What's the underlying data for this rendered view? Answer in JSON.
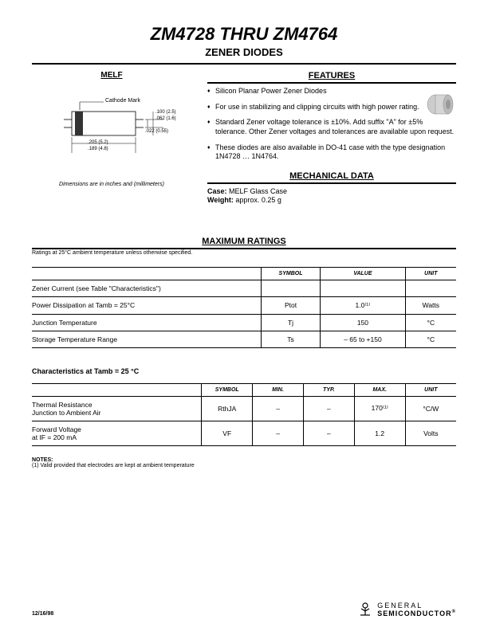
{
  "title_main": "ZM4728 THRU ZM4764",
  "title_sub": "ZENER DIODES",
  "melf_label": "MELF",
  "diagram": {
    "cathode_label": "Cathode Mark",
    "dim1": ".100 (2.5)",
    "dim2": ".062 (1.6)",
    "dim3": ".022 (0.55)",
    "dim4": ".205 (5.2)",
    "dim5": ".189 (4.8)"
  },
  "dim_note": "Dimensions are in inches and (millimeters)",
  "features_header": "FEATURES",
  "features": [
    "Silicon Planar Power Zener Diodes",
    "For use in stabilizing and clipping circuits with high power rating.",
    "Standard Zener voltage tolerance is ±10%. Add suffix \"A\" for ±5% tolerance. Other Zener voltages and tolerances are available upon request.",
    "These diodes are also available in DO-41 case with the type designation 1N4728 … 1N4764."
  ],
  "mech_header": "MECHANICAL DATA",
  "mech": {
    "case_label": "Case:",
    "case_val": "MELF Glass Case",
    "weight_label": "Weight:",
    "weight_val": "approx. 0.25 g"
  },
  "ratings_header": "MAXIMUM RATINGS",
  "ratings_note": "Ratings at 25°C ambient temperature unless otherwise specified.",
  "table1": {
    "headers": [
      "",
      "SYMBOL",
      "VALUE",
      "UNIT"
    ],
    "rows": [
      [
        "Zener Current (see Table \"Characteristics\")",
        "",
        "",
        ""
      ],
      [
        "Power Dissipation at Tamb = 25°C",
        "Ptot",
        "1.0⁽¹⁾",
        "Watts"
      ],
      [
        "Junction Temperature",
        "Tj",
        "150",
        "°C"
      ],
      [
        "Storage Temperature Range",
        "Ts",
        "– 65 to +150",
        "°C"
      ]
    ],
    "col_widths": [
      "54%",
      "14%",
      "20%",
      "12%"
    ]
  },
  "char_title": "Characteristics at Tamb = 25 °C",
  "table2": {
    "headers": [
      "",
      "SYMBOL",
      "MIN.",
      "TYP.",
      "MAX.",
      "UNIT"
    ],
    "rows": [
      [
        "Thermal Resistance\nJunction to Ambient Air",
        "RthJA",
        "–",
        "–",
        "170⁽¹⁾",
        "°C/W"
      ],
      [
        "Forward Voltage\nat IF = 200 mA",
        "VF",
        "–",
        "–",
        "1.2",
        "Volts"
      ]
    ],
    "col_widths": [
      "40%",
      "12%",
      "12%",
      "12%",
      "12%",
      "12%"
    ]
  },
  "notes_label": "NOTES:",
  "notes_text": "(1) Valid provided that electrodes are kept at ambient temperature",
  "footer_date": "12/16/98",
  "footer_brand1": "GENERAL",
  "footer_brand2": "SEMICONDUCTOR",
  "footer_reg": "®"
}
